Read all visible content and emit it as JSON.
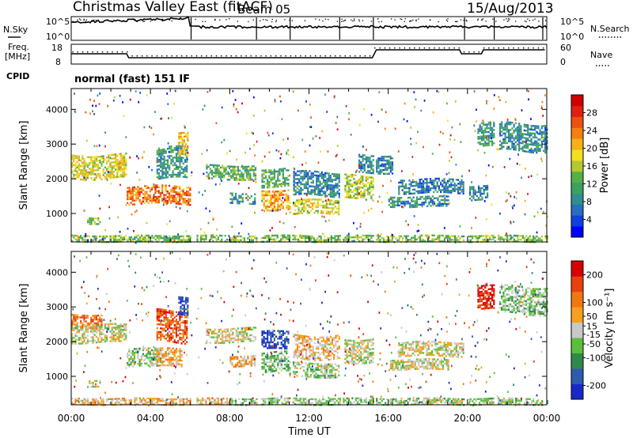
{
  "header": {
    "station": "Christmas Valley East (fitACF)",
    "beam": "Beam 05",
    "date": "15/Aug/2013"
  },
  "top_panels": {
    "nsky_label": "N.Sky",
    "nsearch_label": "N.Search",
    "count_ticks": [
      "10^5",
      "10^0"
    ],
    "freq_label_1": "Freq.",
    "freq_label_2": "[MHz]",
    "freq_ticks": [
      "18",
      "8"
    ],
    "nave_label": "Nave",
    "nave_ticks": [
      "60",
      "0"
    ],
    "cpid_label": "CPID",
    "cpid_text": "normal (fast) 151 IF"
  },
  "chart_data": [
    {
      "type": "heatmap",
      "name": "power",
      "ylabel": "Slant Range [km]",
      "xlabel": "Time UT",
      "xlim": [
        0,
        24
      ],
      "ylim": [
        180,
        4600
      ],
      "x_ticks": [
        "00:00",
        "04:00",
        "08:00",
        "12:00",
        "16:00",
        "20:00",
        "00:00"
      ],
      "y_ticks": [
        1000,
        2000,
        3000,
        4000
      ],
      "colorbar_label": "Power [dB]",
      "colorbar_ticks": [
        4,
        8,
        12,
        16,
        20,
        24,
        28
      ],
      "colorbar_range": [
        0,
        32
      ],
      "colors": [
        "#0000ff",
        "#1040e0",
        "#2a6ec0",
        "#2f8f8f",
        "#3da060",
        "#55b045",
        "#b5c830",
        "#f0e020",
        "#f7b018",
        "#f48010",
        "#ee5010",
        "#e02010",
        "#d00000"
      ],
      "features": [
        {
          "t0": 0.0,
          "t1": 2.8,
          "r0": 2000,
          "r1": 2700,
          "v": 18
        },
        {
          "t0": 0.8,
          "t1": 1.5,
          "r0": 700,
          "r1": 900,
          "v": 14
        },
        {
          "t0": 2.8,
          "t1": 6.0,
          "r0": 1300,
          "r1": 1800,
          "v": 24
        },
        {
          "t0": 4.3,
          "t1": 5.8,
          "r0": 2000,
          "r1": 2900,
          "v": 10
        },
        {
          "t0": 5.4,
          "t1": 5.9,
          "r0": 2600,
          "r1": 3300,
          "v": 20
        },
        {
          "t0": 6.8,
          "t1": 9.3,
          "r0": 2000,
          "r1": 2400,
          "v": 12
        },
        {
          "t0": 8.0,
          "t1": 9.3,
          "r0": 1300,
          "r1": 1600,
          "v": 9
        },
        {
          "t0": 9.6,
          "t1": 11.0,
          "r0": 1100,
          "r1": 1700,
          "v": 22
        },
        {
          "t0": 9.6,
          "t1": 11.0,
          "r0": 1800,
          "r1": 2300,
          "v": 12
        },
        {
          "t0": 11.0,
          "t1": 13.5,
          "r0": 1000,
          "r1": 1400,
          "v": 18
        },
        {
          "t0": 11.2,
          "t1": 13.5,
          "r0": 1500,
          "r1": 2200,
          "v": 8
        },
        {
          "t0": 13.7,
          "t1": 15.2,
          "r0": 1400,
          "r1": 2100,
          "v": 16
        },
        {
          "t0": 14.5,
          "t1": 16.2,
          "r0": 2200,
          "r1": 2700,
          "v": 8
        },
        {
          "t0": 16.0,
          "t1": 19.0,
          "r0": 1200,
          "r1": 1500,
          "v": 9
        },
        {
          "t0": 16.5,
          "t1": 19.8,
          "r0": 1600,
          "r1": 2000,
          "v": 7
        },
        {
          "t0": 20.0,
          "t1": 21.0,
          "r0": 1400,
          "r1": 1800,
          "v": 8
        },
        {
          "t0": 20.5,
          "t1": 21.3,
          "r0": 2900,
          "r1": 3600,
          "v": 10
        },
        {
          "t0": 21.6,
          "t1": 24.0,
          "r0": 2800,
          "r1": 3600,
          "v": 9
        },
        {
          "t0": 0.0,
          "t1": 24.0,
          "r0": 180,
          "r1": 380,
          "v": 14
        }
      ]
    },
    {
      "type": "heatmap",
      "name": "velocity",
      "ylabel": "Slant Range [km]",
      "xlabel": "Time UT",
      "xlim": [
        0,
        24
      ],
      "ylim": [
        180,
        4600
      ],
      "x_ticks": [
        "00:00",
        "04:00",
        "08:00",
        "12:00",
        "16:00",
        "20:00",
        "00:00"
      ],
      "y_ticks": [
        1000,
        2000,
        3000,
        4000
      ],
      "colorbar_label": "Velocity [m s⁻¹]",
      "colorbar_ticks": [
        200,
        100,
        50,
        15,
        -15,
        -50,
        -100,
        -200
      ],
      "colorbar_range": [
        -250,
        250
      ],
      "colors": [
        "#1a28c8",
        "#2f5ab0",
        "#2e8a4a",
        "#5ac03c",
        "#c8c8c8",
        "#f5a020",
        "#f07810",
        "#e84010",
        "#d80000"
      ],
      "features": [
        {
          "t0": 0.0,
          "t1": 1.5,
          "r0": 2400,
          "r1": 2800,
          "v": 120
        },
        {
          "t0": 0.0,
          "t1": 2.8,
          "r0": 2000,
          "r1": 2500,
          "v": 0
        },
        {
          "t0": 0.8,
          "t1": 1.5,
          "r0": 700,
          "r1": 900,
          "v": 0
        },
        {
          "t0": 2.8,
          "t1": 4.5,
          "r0": 1300,
          "r1": 1800,
          "v": -30
        },
        {
          "t0": 4.3,
          "t1": 5.6,
          "r0": 1300,
          "r1": 1800,
          "v": 60
        },
        {
          "t0": 4.3,
          "t1": 5.8,
          "r0": 2000,
          "r1": 2900,
          "v": 150
        },
        {
          "t0": 5.4,
          "t1": 5.9,
          "r0": 2800,
          "r1": 3300,
          "v": -200
        },
        {
          "t0": 6.8,
          "t1": 9.3,
          "r0": 2000,
          "r1": 2400,
          "v": 0
        },
        {
          "t0": 8.0,
          "t1": 9.3,
          "r0": 1300,
          "r1": 1600,
          "v": 60
        },
        {
          "t0": 9.6,
          "t1": 11.0,
          "r0": 1100,
          "r1": 1700,
          "v": -60
        },
        {
          "t0": 9.6,
          "t1": 11.0,
          "r0": 1800,
          "r1": 2300,
          "v": -200
        },
        {
          "t0": 11.0,
          "t1": 13.5,
          "r0": 1000,
          "r1": 1400,
          "v": -30
        },
        {
          "t0": 11.2,
          "t1": 13.5,
          "r0": 1500,
          "r1": 2200,
          "v": 40
        },
        {
          "t0": 13.7,
          "t1": 15.2,
          "r0": 1400,
          "r1": 2100,
          "v": 0
        },
        {
          "t0": 16.0,
          "t1": 19.0,
          "r0": 1200,
          "r1": 1500,
          "v": 0
        },
        {
          "t0": 16.5,
          "t1": 19.8,
          "r0": 1600,
          "r1": 2000,
          "v": 0
        },
        {
          "t0": 20.5,
          "t1": 21.3,
          "r0": 2900,
          "r1": 3600,
          "v": 200
        },
        {
          "t0": 21.6,
          "t1": 24.0,
          "r0": 2800,
          "r1": 3600,
          "v": -40
        },
        {
          "t0": 0.0,
          "t1": 8.0,
          "r0": 180,
          "r1": 380,
          "v": 40
        },
        {
          "t0": 8.0,
          "t1": 24.0,
          "r0": 180,
          "r1": 380,
          "v": -30
        }
      ]
    }
  ]
}
